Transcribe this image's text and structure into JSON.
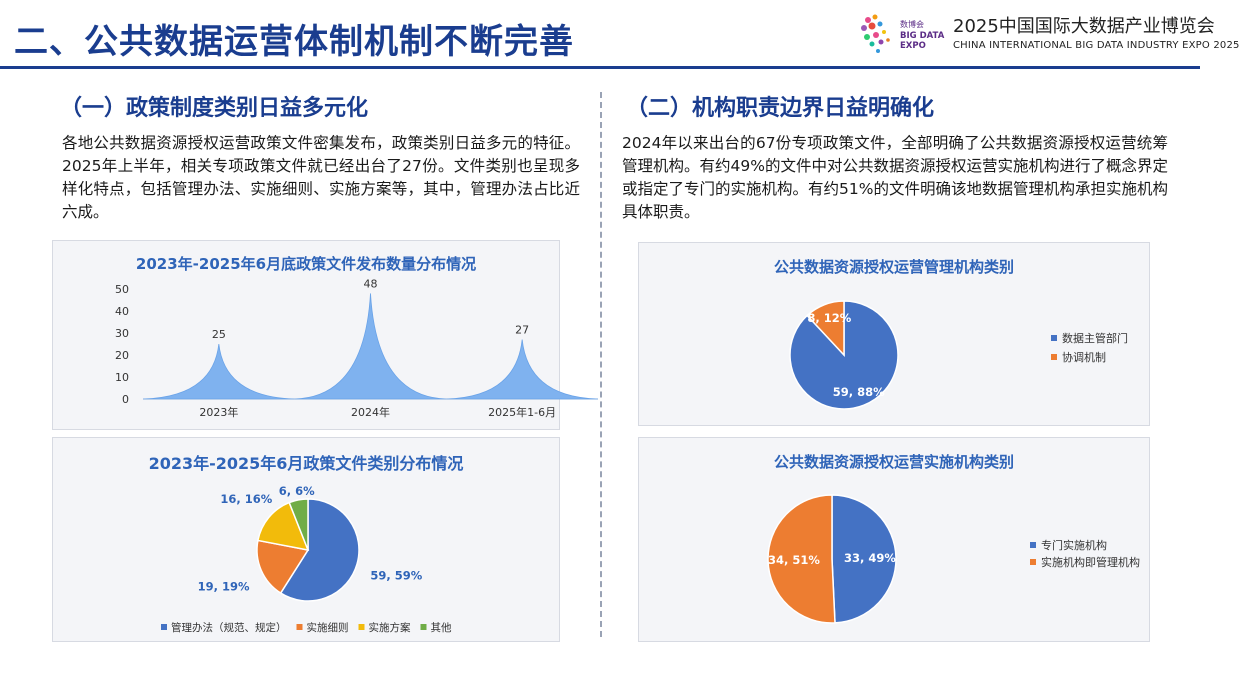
{
  "header": {
    "title": "二、公共数据运营体制机制不断完善",
    "expo_logo_lines": [
      "数博会",
      "BIG DATA",
      "EXPO"
    ],
    "expo_name_cn": "2025中国国际大数据产业博览会",
    "expo_name_en": "CHINA INTERNATIONAL BIG DATA INDUSTRY EXPO 2025"
  },
  "left": {
    "section_title": "（一）政策制度类别日益多元化",
    "paragraph": "各地公共数据资源授权运营政策文件密集发布，政策类别日益多元的特征。2025年上半年，相关专项政策文件就已经出台了27份。文件类别也呈现多样化特点，包括管理办法、实施细则、实施方案等，其中，管理办法占比近六成。"
  },
  "right": {
    "section_title": "（二）机构职责边界日益明确化",
    "paragraph": "2024年以来出台的67份专项政策文件，全部明确了公共数据资源授权运营统筹管理机构。有约49%的文件中对公共数据资源授权运营实施机构进行了概念界定或指定了专门的实施机构。有约51%的文件明确该地数据管理机构承担实施机构具体职责。"
  },
  "chart_data": [
    {
      "id": "trend",
      "type": "area",
      "title": "2023年-2025年6月底政策文件发布数量分布情况",
      "categories": [
        "2023年",
        "2024年",
        "2025年1-6月"
      ],
      "values": [
        25,
        48,
        27
      ],
      "data_labels": [
        "25",
        "48",
        "27"
      ],
      "ylim": [
        0,
        50
      ],
      "yticks": [
        "0",
        "10",
        "20",
        "30",
        "40",
        "50"
      ],
      "color": "#7fb2ef",
      "grid": false
    },
    {
      "id": "category",
      "type": "pie",
      "title": "2023年-2025年6月政策文件类别分布情况",
      "slices": [
        {
          "name": "管理办法（规范、规定）",
          "value": 59,
          "label": "59, 59%",
          "color": "#4472c4"
        },
        {
          "name": "实施细则",
          "value": 19,
          "label": "19, 19%",
          "color": "#ed7d31"
        },
        {
          "name": "实施方案",
          "value": 16,
          "label": "16, 16%",
          "color": "#f2bb0b"
        },
        {
          "name": "其他",
          "value": 6,
          "label": "6, 6%",
          "color": "#70ad47"
        }
      ],
      "legend": "bottom"
    },
    {
      "id": "mgmt",
      "type": "pie",
      "title": "公共数据资源授权运营管理机构类别",
      "slices": [
        {
          "name": "数据主管部门",
          "value": 59,
          "label": "59, 88%",
          "color": "#4472c4"
        },
        {
          "name": "协调机制",
          "value": 8,
          "label": "8, 12%",
          "color": "#ed7d31"
        }
      ],
      "legend": "right"
    },
    {
      "id": "impl",
      "type": "pie",
      "title": "公共数据资源授权运营实施机构类别",
      "slices": [
        {
          "name": "专门实施机构",
          "value": 33,
          "label": "33, 49%",
          "color": "#4472c4"
        },
        {
          "name": "实施机构即管理机构",
          "value": 34,
          "label": "34, 51%",
          "color": "#ed7d31"
        }
      ],
      "legend": "right"
    }
  ]
}
